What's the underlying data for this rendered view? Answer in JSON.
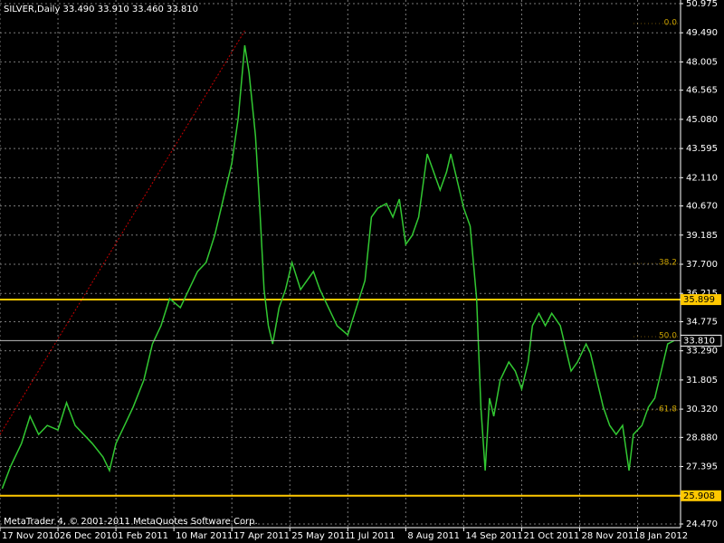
{
  "chart_data": {
    "type": "line",
    "title": "SILVER,Daily  33.490 33.910 33.460 33.810",
    "footer": "MetaTrader 4, © 2001-2011 MetaQuotes Software Corp.",
    "color": "#32c832",
    "grid": true,
    "xlim": [
      0,
      317
    ],
    "ylim": [
      24.47,
      50.975
    ],
    "xticks": [
      {
        "value": 0,
        "label": "17 Nov 2010"
      },
      {
        "value": 27,
        "label": "26 Dec 2010"
      },
      {
        "value": 54,
        "label": "1 Feb 2011"
      },
      {
        "value": 81,
        "label": "10 Mar 2011"
      },
      {
        "value": 108,
        "label": "17 Apr 2011"
      },
      {
        "value": 135,
        "label": "25 May 2011"
      },
      {
        "value": 162,
        "label": "1 Jul 2011"
      },
      {
        "value": 189,
        "label": "8 Aug 2011"
      },
      {
        "value": 216,
        "label": "14 Sep 2011"
      },
      {
        "value": 243,
        "label": "21 Oct 2011"
      },
      {
        "value": 270,
        "label": "28 Nov 2011"
      },
      {
        "value": 297,
        "label": "8 Jan 2012"
      }
    ],
    "yticks": [
      50.975,
      {
        "value": 49.49,
        "label": "49.490"
      },
      48.005,
      {
        "value": 46.565,
        "label": "46.565"
      },
      {
        "value": 45.08,
        "label": "45.080"
      },
      43.595,
      {
        "value": 42.11,
        "label": "42.110"
      },
      {
        "value": 40.67,
        "label": "40.670"
      },
      39.185,
      {
        "value": 37.7,
        "label": "37.700"
      },
      36.215,
      34.775,
      {
        "value": 33.29,
        "label": "33.290"
      },
      31.805,
      {
        "value": 30.32,
        "label": "30.320"
      },
      {
        "value": 28.88,
        "label": "28.880"
      },
      27.395,
      {
        "value": 24.47,
        "label": "24.470"
      }
    ],
    "x": [
      1,
      5,
      10,
      14,
      18,
      22,
      27,
      31,
      35,
      39,
      43,
      48,
      51,
      54,
      58,
      62,
      67,
      71,
      75,
      79,
      84,
      88,
      92,
      96,
      100,
      105,
      108,
      111,
      114,
      116,
      119,
      121,
      123,
      125,
      127,
      130,
      133,
      136,
      140,
      143,
      146,
      149,
      153,
      157,
      162,
      166,
      170,
      173,
      176,
      180,
      183,
      186,
      189,
      192,
      195,
      199,
      202,
      205,
      208,
      210,
      213,
      216,
      219,
      222,
      224,
      226,
      228,
      230,
      233,
      237,
      240,
      243,
      246,
      248,
      251,
      254,
      257,
      261,
      264,
      266,
      269,
      273,
      275,
      278,
      281,
      284,
      287,
      290,
      293,
      295,
      299,
      302,
      305,
      308,
      311,
      314
    ],
    "values": [
      26.27,
      27.42,
      28.57,
      29.96,
      29.03,
      29.49,
      29.26,
      30.65,
      29.49,
      29.03,
      28.57,
      27.88,
      27.19,
      28.57,
      29.49,
      30.42,
      31.8,
      33.64,
      34.57,
      35.95,
      35.49,
      36.41,
      37.33,
      37.79,
      39.17,
      41.48,
      42.86,
      45.17,
      48.85,
      47.47,
      44.24,
      40.56,
      36.41,
      34.57,
      33.64,
      35.49,
      36.41,
      37.79,
      36.41,
      36.87,
      37.33,
      36.41,
      35.49,
      34.57,
      34.1,
      35.49,
      36.87,
      40.1,
      40.56,
      40.79,
      40.1,
      41.02,
      38.71,
      39.17,
      40.1,
      43.32,
      42.4,
      41.48,
      42.4,
      43.32,
      41.94,
      40.56,
      39.64,
      35.95,
      30.42,
      27.19,
      30.88,
      29.96,
      31.8,
      32.72,
      32.26,
      31.34,
      32.72,
      34.57,
      35.2,
      34.57,
      35.2,
      34.57,
      33.18,
      32.26,
      32.72,
      33.64,
      33.18,
      31.8,
      30.42,
      29.49,
      29.03,
      29.49,
      27.19,
      29.03,
      29.49,
      30.42,
      30.88,
      32.26,
      33.64,
      33.81
    ],
    "levels": [
      {
        "value": 35.899,
        "color": "#ffc800"
      },
      {
        "value": 25.908,
        "color": "#ffc800"
      }
    ],
    "current_price": {
      "value": 33.81,
      "label": "33.810"
    },
    "fibo": [
      {
        "label": "0.0",
        "value": 49.96
      },
      {
        "label": "38.2",
        "value": 37.74
      },
      {
        "label": "50.0",
        "value": 34.01
      },
      {
        "label": "61.8",
        "value": 30.28
      }
    ],
    "trend_line": {
      "x": [
        0,
        114
      ],
      "values": [
        29.03,
        49.59
      ],
      "color": "#c80000"
    }
  }
}
